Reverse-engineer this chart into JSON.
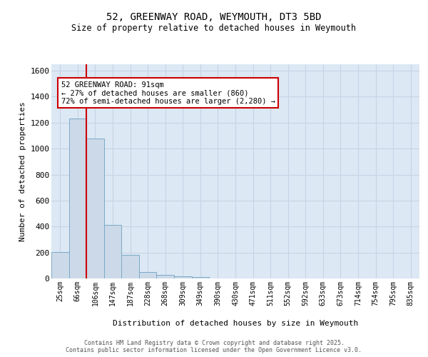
{
  "title_line1": "52, GREENWAY ROAD, WEYMOUTH, DT3 5BD",
  "title_line2": "Size of property relative to detached houses in Weymouth",
  "xlabel": "Distribution of detached houses by size in Weymouth",
  "ylabel": "Number of detached properties",
  "categories": [
    "25sqm",
    "66sqm",
    "106sqm",
    "147sqm",
    "187sqm",
    "228sqm",
    "268sqm",
    "309sqm",
    "349sqm",
    "390sqm",
    "430sqm",
    "471sqm",
    "511sqm",
    "552sqm",
    "592sqm",
    "633sqm",
    "673sqm",
    "714sqm",
    "754sqm",
    "795sqm",
    "835sqm"
  ],
  "values": [
    205,
    1230,
    1080,
    415,
    180,
    50,
    25,
    18,
    10,
    0,
    0,
    0,
    0,
    0,
    0,
    0,
    0,
    0,
    0,
    0,
    0
  ],
  "bar_color": "#ccd9e8",
  "bar_edge_color": "#7aaac8",
  "red_line_color": "#cc0000",
  "annotation_text": "52 GREENWAY ROAD: 91sqm\n← 27% of detached houses are smaller (860)\n72% of semi-detached houses are larger (2,280) →",
  "annotation_box_color": "#ffffff",
  "annotation_box_edge_color": "#cc0000",
  "ylim": [
    0,
    1650
  ],
  "yticks": [
    0,
    200,
    400,
    600,
    800,
    1000,
    1200,
    1400,
    1600
  ],
  "grid_color": "#c8d4e4",
  "background_color": "#dce8f4",
  "footer_line1": "Contains HM Land Registry data © Crown copyright and database right 2025.",
  "footer_line2": "Contains public sector information licensed under the Open Government Licence v3.0."
}
